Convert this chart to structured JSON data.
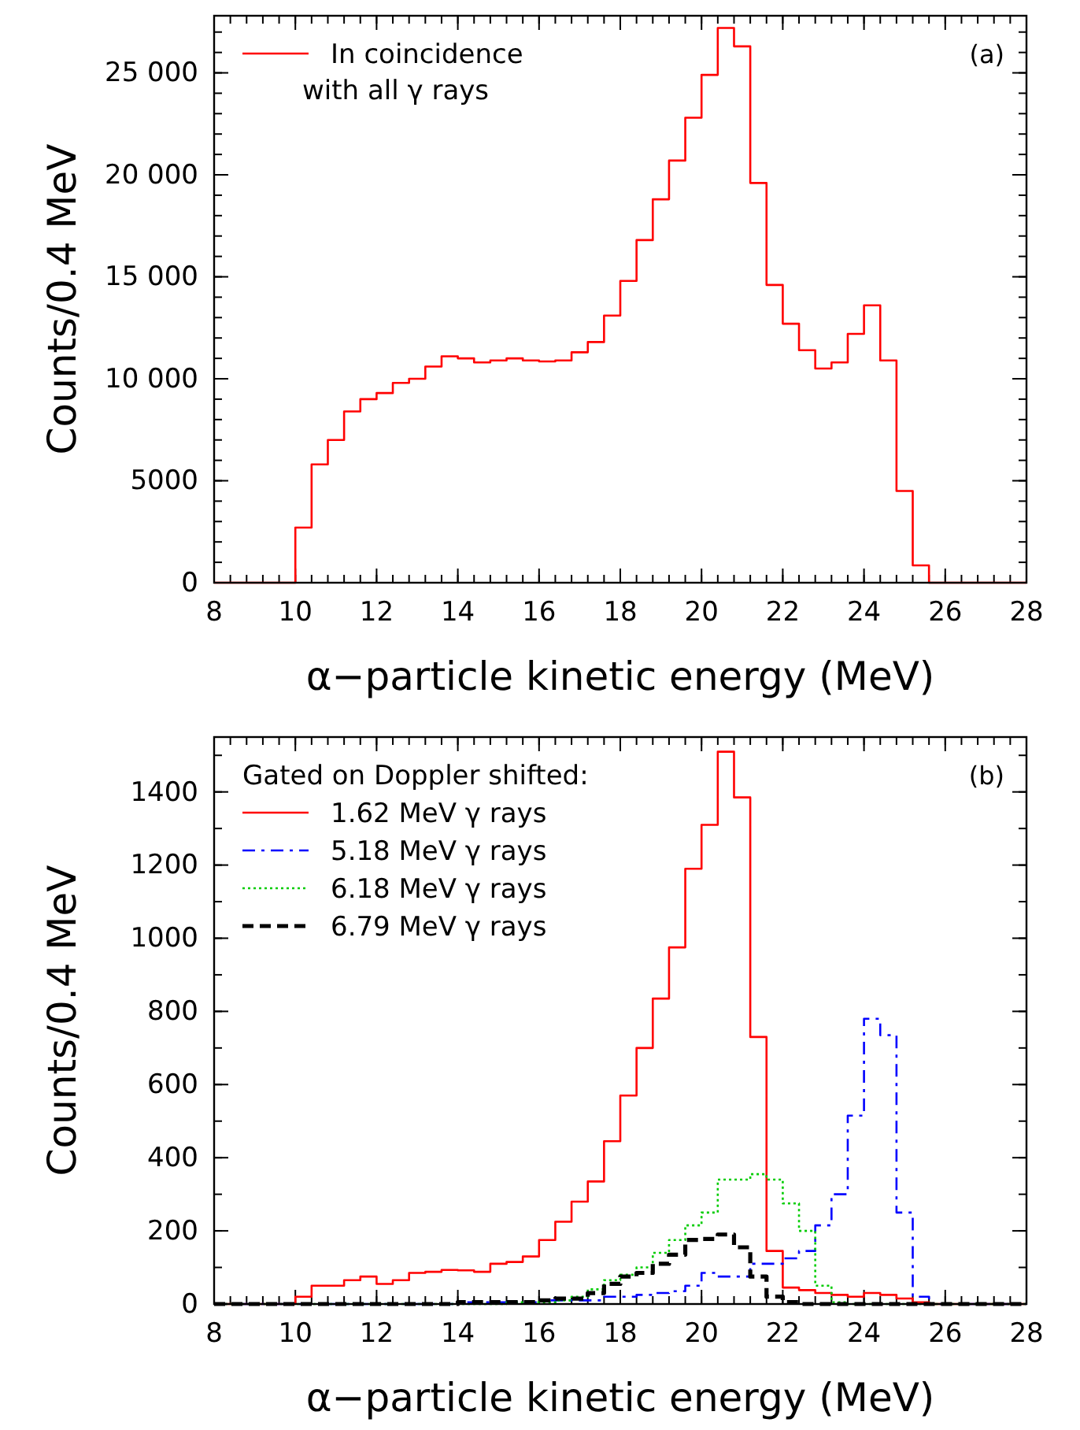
{
  "chart_data": [
    {
      "type": "histogram",
      "xlabel": "α−particle kinetic energy (MeV)",
      "ylabel": "Counts/0.4 MeV",
      "legend": "top left",
      "annotations": [
        "(a)"
      ],
      "bins": [
        8,
        8.4,
        8.8,
        9.2,
        9.6,
        10,
        10.4,
        10.8,
        11.2,
        11.6,
        12,
        12.4,
        12.8,
        13.2,
        13.6,
        14,
        14.4,
        14.8,
        15.2,
        15.6,
        16,
        16.4,
        16.8,
        17.2,
        17.6,
        18,
        18.4,
        18.8,
        19.2,
        19.6,
        20,
        20.4,
        20.8,
        21.2,
        21.6,
        22,
        22.4,
        22.8,
        23.2,
        23.6,
        24,
        24.4,
        24.8,
        25.2,
        25.6,
        26,
        26.4,
        26.8,
        27.2,
        27.6,
        28
      ],
      "series": [
        {
          "name": "In coincidence\nwith all γ rays",
          "color": "#ff0000",
          "line_style": "solid",
          "values": [
            0,
            0,
            0,
            0,
            0,
            2700,
            5800,
            7000,
            8400,
            9000,
            9300,
            9800,
            10000,
            10600,
            11100,
            11000,
            10800,
            10900,
            11000,
            10900,
            10850,
            10900,
            11300,
            11800,
            13100,
            14800,
            16800,
            18800,
            20700,
            22800,
            24900,
            27200,
            26300,
            19600,
            14600,
            12700,
            11400,
            10500,
            10800,
            12200,
            13600,
            10900,
            4500,
            850,
            0,
            0,
            0,
            0,
            0,
            0
          ]
        }
      ],
      "xlim": [
        8,
        28
      ],
      "xticks": [
        8,
        10,
        12,
        14,
        16,
        18,
        20,
        22,
        24,
        26,
        28
      ],
      "ylim": [
        0,
        27800
      ],
      "yticks": [
        0,
        5000,
        {
          "value": 10000,
          "label": "10 000"
        },
        {
          "value": 15000,
          "label": "15 000"
        },
        {
          "value": 20000,
          "label": "20 000"
        },
        {
          "value": 25000,
          "label": "25 000"
        }
      ]
    },
    {
      "type": "histogram",
      "xlabel": "α−particle kinetic energy (MeV)",
      "ylabel": "Counts/0.4 MeV",
      "legend": "top left",
      "legend_title": "Gated on Doppler shifted:",
      "annotations": [
        "(b)"
      ],
      "bins": [
        8,
        8.4,
        8.8,
        9.2,
        9.6,
        10,
        10.4,
        10.8,
        11.2,
        11.6,
        12,
        12.4,
        12.8,
        13.2,
        13.6,
        14,
        14.4,
        14.8,
        15.2,
        15.6,
        16,
        16.4,
        16.8,
        17.2,
        17.6,
        18,
        18.4,
        18.8,
        19.2,
        19.6,
        20,
        20.4,
        20.8,
        21.2,
        21.6,
        22,
        22.4,
        22.8,
        23.2,
        23.6,
        24,
        24.4,
        24.8,
        25.2,
        25.6,
        26,
        26.4,
        26.8,
        27.2,
        27.6,
        28
      ],
      "series": [
        {
          "name": "1.62 MeV γ rays",
          "color": "#ff0000",
          "line_style": "solid",
          "values": [
            0,
            0,
            0,
            0,
            0,
            20,
            50,
            50,
            65,
            75,
            55,
            65,
            85,
            88,
            93,
            92,
            88,
            110,
            115,
            130,
            175,
            225,
            280,
            335,
            445,
            570,
            700,
            835,
            975,
            1190,
            1310,
            1510,
            1385,
            730,
            145,
            45,
            38,
            30,
            25,
            20,
            30,
            25,
            15,
            5,
            0,
            0,
            0,
            0,
            0,
            0
          ]
        },
        {
          "name": "5.18 MeV γ rays",
          "color": "#0000ff",
          "line_style": "dashdot",
          "values": [
            0,
            0,
            0,
            0,
            0,
            0,
            0,
            0,
            0,
            0,
            0,
            0,
            0,
            0,
            0,
            5,
            5,
            5,
            5,
            5,
            10,
            10,
            10,
            10,
            20,
            20,
            25,
            30,
            35,
            50,
            85,
            75,
            75,
            110,
            110,
            125,
            145,
            215,
            300,
            515,
            780,
            735,
            250,
            20,
            0,
            0,
            0,
            0,
            0,
            0
          ]
        },
        {
          "name": "6.18 MeV γ rays",
          "color": "#00cc00",
          "line_style": "dotted",
          "values": [
            0,
            0,
            0,
            0,
            0,
            0,
            0,
            0,
            0,
            0,
            0,
            0,
            0,
            0,
            0,
            0,
            0,
            0,
            5,
            5,
            5,
            10,
            20,
            40,
            65,
            80,
            100,
            140,
            175,
            215,
            250,
            340,
            340,
            355,
            340,
            275,
            200,
            50,
            5,
            0,
            0,
            0,
            0,
            0,
            0,
            0,
            0,
            0,
            0,
            0
          ]
        },
        {
          "name": "6.79 MeV γ rays",
          "color": "#000000",
          "line_style": "dashed",
          "values": [
            0,
            0,
            0,
            0,
            0,
            0,
            0,
            0,
            0,
            0,
            0,
            0,
            0,
            0,
            0,
            5,
            5,
            5,
            5,
            5,
            10,
            15,
            15,
            30,
            55,
            75,
            85,
            110,
            135,
            175,
            178,
            190,
            155,
            75,
            20,
            5,
            0,
            0,
            0,
            0,
            0,
            0,
            0,
            0,
            0,
            0,
            0,
            0,
            0,
            0
          ]
        }
      ],
      "xlim": [
        8,
        28
      ],
      "xticks": [
        8,
        10,
        12,
        14,
        16,
        18,
        20,
        22,
        24,
        26,
        28
      ],
      "ylim": [
        0,
        1550
      ],
      "yticks": [
        0,
        200,
        400,
        600,
        800,
        1000,
        1200,
        1400
      ]
    }
  ]
}
